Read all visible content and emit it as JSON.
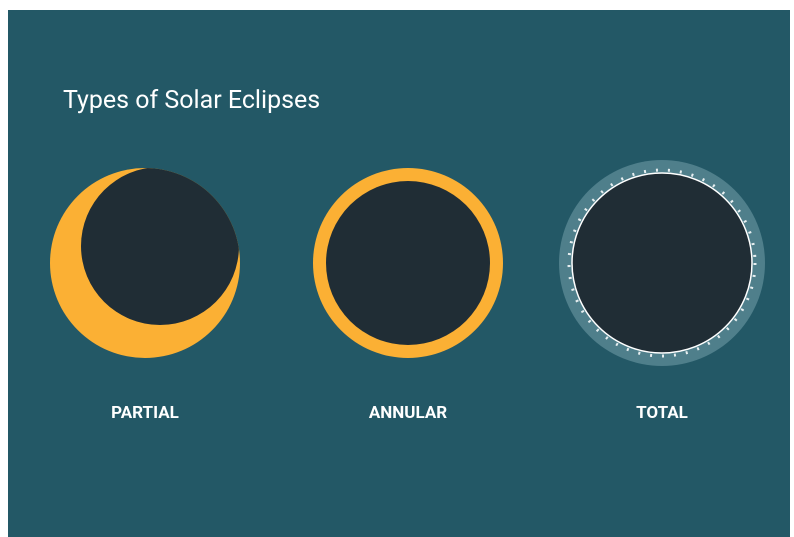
{
  "header": {
    "title": "Types of Solar Eclipses"
  },
  "eclipses": [
    {
      "label": "PARTIAL"
    },
    {
      "label": "ANNULAR"
    },
    {
      "label": "TOTAL"
    }
  ]
}
